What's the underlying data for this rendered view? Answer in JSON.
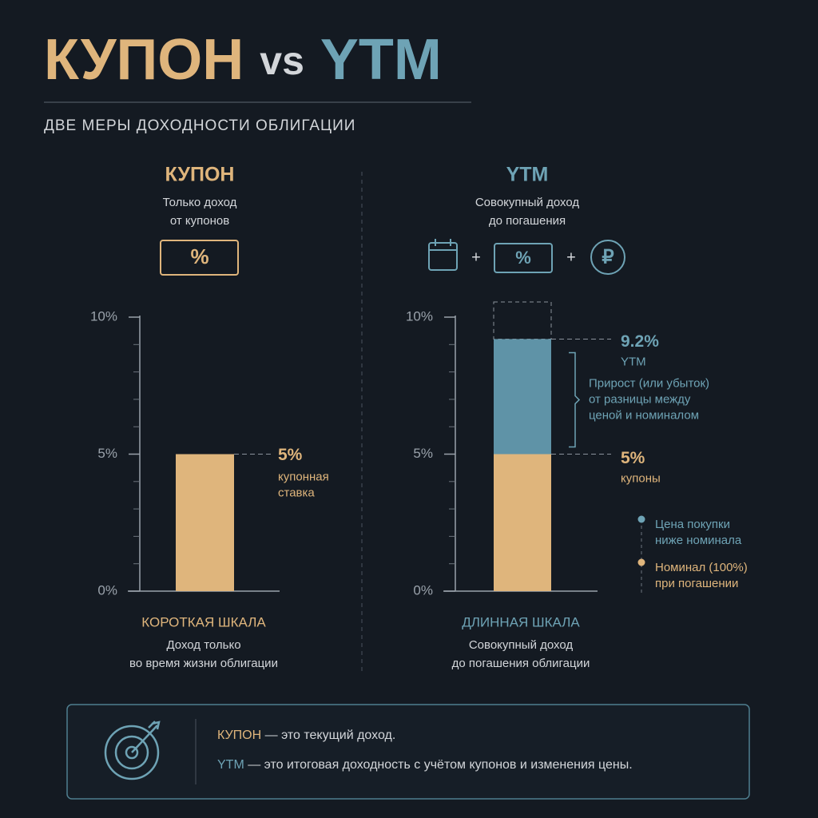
{
  "header": {
    "title": [
      "КУПОН",
      "vs",
      "YTM"
    ],
    "subtitle": "ДВЕ МЕРЫ ДОХОДНОСТИ ОБЛИГАЦИИ"
  },
  "panels": [
    {
      "heading": "КУПОН",
      "sub": [
        "Только доход",
        "от купонов"
      ],
      "icon_text": "%",
      "scale": "КОРОТКАЯ ШКАЛА",
      "caption": [
        "Доход только",
        "во время жизни облигации"
      ]
    },
    {
      "heading": "YTM",
      "sub": [
        "Совокупный доход",
        "до погашения"
      ],
      "icon_text": "%",
      "plus": "+",
      "ruble": "₽",
      "scale": "ДЛИННАЯ ШКАЛА",
      "caption": [
        "Совокупный доход",
        "до погашения облигации"
      ]
    }
  ],
  "chart_data": [
    {
      "type": "bar",
      "categories": [
        null
      ],
      "values": [
        5
      ],
      "value_labels": [
        "5%"
      ],
      "value_note": [
        "купонная",
        "ставка"
      ],
      "color": "#dfb57c",
      "ylim": [
        0,
        10
      ],
      "yticks": [
        {
          "value": 0,
          "label": "0%"
        },
        {
          "value": 5,
          "label": "5%"
        },
        {
          "value": 10,
          "label": "10%"
        }
      ],
      "minor_ticks": [
        1,
        2,
        3,
        4,
        6,
        7,
        8,
        9
      ]
    },
    {
      "type": "stacked_bar",
      "categories": [
        null
      ],
      "series": [
        {
          "name": "купоны",
          "color": "#dfb57c",
          "values": [
            5
          ],
          "value_labels": [
            "5%"
          ]
        },
        {
          "color": "#5f93a7",
          "values": [
            4.2
          ]
        }
      ],
      "total": {
        "value": 9.2,
        "label": "9.2%",
        "note": "YTM"
      },
      "bracket_note": [
        "Прирост (или убыток)",
        "от разницы между",
        "ценой и номиналом"
      ],
      "legend": [
        {
          "lines": [
            "Цена покупки",
            "ниже номинала"
          ],
          "color": "#6ea3b5"
        },
        {
          "lines": [
            "Номинал (100%)",
            "при погашении"
          ],
          "color": "#dfb57c"
        }
      ],
      "ylim": [
        0,
        10
      ],
      "yticks": [
        {
          "value": 0,
          "label": "0%"
        },
        {
          "value": 5,
          "label": "5%"
        },
        {
          "value": 10,
          "label": "10%"
        }
      ],
      "minor_ticks": [
        1,
        2,
        3,
        4,
        6,
        7,
        8,
        9
      ]
    }
  ],
  "footer": {
    "lines": [
      {
        "key": "КУПОН",
        "text": " — это текущий доход."
      },
      {
        "key": "YTM",
        "text": " — это итоговая доходность с учётом купонов и изменения цены."
      }
    ]
  }
}
